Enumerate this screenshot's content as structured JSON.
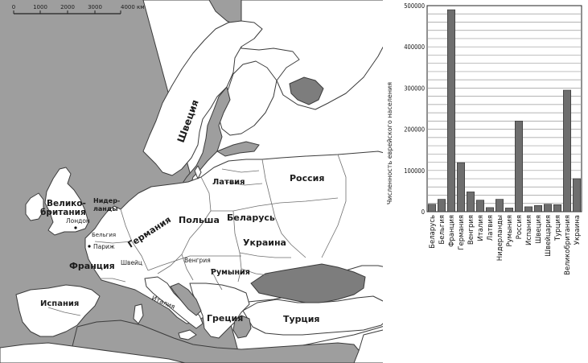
{
  "scale_bar": {
    "ticks": [
      "0",
      "1000",
      "2000",
      "3000",
      "4000 км"
    ]
  },
  "map_labels": {
    "sweden": "Швеция",
    "russia": "Росcия",
    "latvia": "Латвия",
    "belarus": "Беларусь",
    "poland": "Польша",
    "ukraine": "Украина",
    "germany": "Германия",
    "uk_1": "Велико-",
    "uk_2": "британия",
    "netherlands_1": "Нидер-",
    "netherlands_2": "ланды",
    "london": "Лондон",
    "belgium": "Бельгия",
    "paris": "Париж",
    "france": "Франция",
    "switzerland": "Швейц",
    "hungary": "Венгрия",
    "romania": "Румыния",
    "spain": "Испания",
    "italy": "Италия",
    "greece": "Греция",
    "turkey": "Турция"
  },
  "colors": {
    "sea": "#9e9e9e",
    "land": "#ffffff",
    "bar": "#6e6e6e"
  },
  "chart_data": {
    "type": "bar",
    "ylabel": "Численность еврейского населения",
    "ylim": [
      0,
      500000
    ],
    "yticks": [
      "0",
      "100000",
      "200000",
      "300000",
      "400000",
      "500000"
    ],
    "ytick_values": [
      0,
      100000,
      200000,
      300000,
      400000,
      500000
    ],
    "grid": true,
    "categories": [
      "Беларусь",
      "Бельгия",
      "Франция",
      "Германия",
      "Венгрия",
      "Италия",
      "Латвия",
      "Нидерланды",
      "Румыния",
      "Россия",
      "Испания",
      "Швеция",
      "Швейцария",
      "Турция",
      "Великобритания",
      "Украина"
    ],
    "values": [
      18000,
      30000,
      490000,
      119000,
      48000,
      28000,
      10000,
      30000,
      9000,
      220000,
      12000,
      15000,
      18000,
      17000,
      295000,
      80000
    ]
  }
}
